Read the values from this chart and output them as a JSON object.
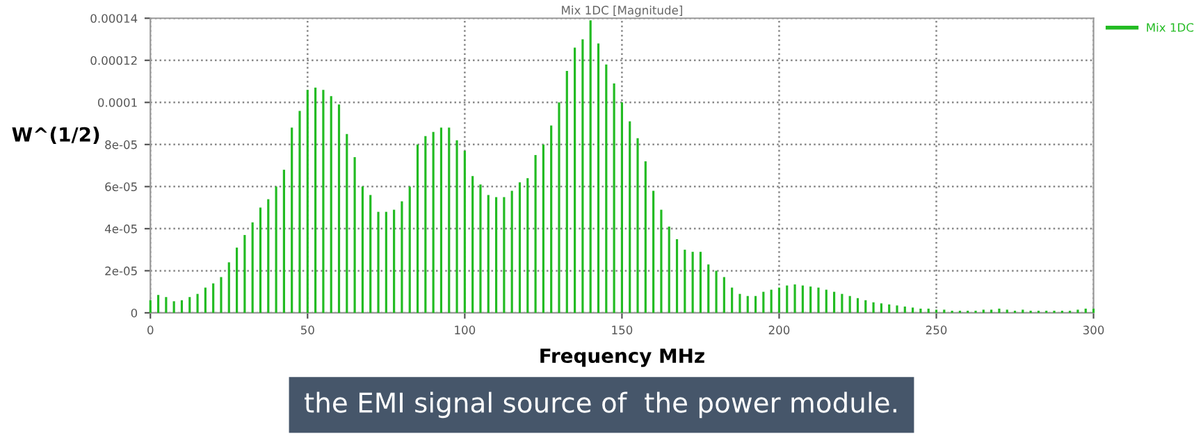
{
  "chart_data": {
    "type": "bar",
    "title": "Mix 1DC [Magnitude]",
    "xlabel": "Frequency MHz",
    "ylabel": "W^(1/2)",
    "annotations": [
      "the EMI signal source of  the power module."
    ],
    "x": [
      0,
      2.5,
      5,
      7.5,
      10,
      12.5,
      15,
      17.5,
      20,
      22.5,
      25,
      27.5,
      30,
      32.5,
      35,
      37.5,
      40,
      42.5,
      45,
      47.5,
      50,
      52.5,
      55,
      57.5,
      60,
      62.5,
      65,
      67.5,
      70,
      72.5,
      75,
      77.5,
      80,
      82.5,
      85,
      87.5,
      90,
      92.5,
      95,
      97.5,
      100,
      102.5,
      105,
      107.5,
      110,
      112.5,
      115,
      117.5,
      120,
      122.5,
      125,
      127.5,
      130,
      132.5,
      135,
      137.5,
      140,
      142.5,
      145,
      147.5,
      150,
      152.5,
      155,
      157.5,
      160,
      162.5,
      165,
      167.5,
      170,
      172.5,
      175,
      177.5,
      180,
      182.5,
      185,
      187.5,
      190,
      192.5,
      195,
      197.5,
      200,
      202.5,
      205,
      207.5,
      210,
      212.5,
      215,
      217.5,
      220,
      222.5,
      225,
      227.5,
      230,
      232.5,
      235,
      237.5,
      240,
      242.5,
      245,
      247.5,
      250,
      252.5,
      255,
      257.5,
      260,
      262.5,
      265,
      267.5,
      270,
      272.5,
      275,
      277.5,
      280,
      282.5,
      285,
      287.5,
      290,
      292.5,
      295,
      297.5,
      300
    ],
    "series": [
      {
        "name": "Mix 1DC",
        "color": "#22bb22",
        "values": [
          6e-06,
          8.5e-06,
          7.5e-06,
          5.5e-06,
          6e-06,
          7.5e-06,
          9e-06,
          1.2e-05,
          1.4e-05,
          1.7e-05,
          2.4e-05,
          3.1e-05,
          3.7e-05,
          4.3e-05,
          5e-05,
          5.4e-05,
          6e-05,
          6.8e-05,
          8.8e-05,
          9.6e-05,
          0.000106,
          0.000107,
          0.000106,
          0.000103,
          9.9e-05,
          8.5e-05,
          7.4e-05,
          6e-05,
          5.6e-05,
          4.8e-05,
          4.8e-05,
          4.9e-05,
          5.3e-05,
          6e-05,
          8e-05,
          8.4e-05,
          8.6e-05,
          8.8e-05,
          8.8e-05,
          8.2e-05,
          7.7e-05,
          6.5e-05,
          6.1e-05,
          5.6e-05,
          5.5e-05,
          5.5e-05,
          5.8e-05,
          6.2e-05,
          6.4e-05,
          7.5e-05,
          8e-05,
          8.9e-05,
          0.0001,
          0.000115,
          0.000126,
          0.00013,
          0.000139,
          0.000128,
          0.000118,
          0.000109,
          0.0001,
          9.1e-05,
          8.3e-05,
          7.2e-05,
          5.8e-05,
          4.9e-05,
          4.1e-05,
          3.5e-05,
          3e-05,
          2.9e-05,
          2.9e-05,
          2.3e-05,
          2e-05,
          1.7e-05,
          1.2e-05,
          9e-06,
          8e-06,
          8e-06,
          1e-05,
          1.1e-05,
          1.2e-05,
          1.3e-05,
          1.35e-05,
          1.3e-05,
          1.25e-05,
          1.2e-05,
          1.1e-05,
          1e-05,
          9e-06,
          8e-06,
          7e-06,
          6e-06,
          5e-06,
          4.5e-06,
          4e-06,
          3.5e-06,
          3e-06,
          2.5e-06,
          2e-06,
          2e-06,
          1.5e-06,
          1.5e-06,
          1e-06,
          1e-06,
          1e-06,
          1e-06,
          1.5e-06,
          1.5e-06,
          2e-06,
          1.5e-06,
          1e-06,
          1.5e-06,
          1e-06,
          1e-06,
          1e-06,
          1e-06,
          1e-06,
          1e-06,
          1.5e-06,
          2e-06,
          2e-06
        ]
      }
    ],
    "xlim": [
      0,
      300
    ],
    "xticks": [
      0,
      50,
      100,
      150,
      200,
      250,
      300
    ],
    "ylim": [
      0,
      0.00014
    ],
    "yticks": [
      0,
      {
        "value": 2e-05,
        "label": "2e-05"
      },
      {
        "value": 4e-05,
        "label": "4e-05"
      },
      {
        "value": 6e-05,
        "label": "6e-05"
      },
      {
        "value": 8e-05,
        "label": "8e-05"
      },
      {
        "value": 0.0001,
        "label": "0.0001"
      },
      {
        "value": 0.00012,
        "label": "0.00012"
      },
      {
        "value": 0.00014,
        "label": "0.00014"
      }
    ],
    "grid": true,
    "legend": "top right"
  }
}
